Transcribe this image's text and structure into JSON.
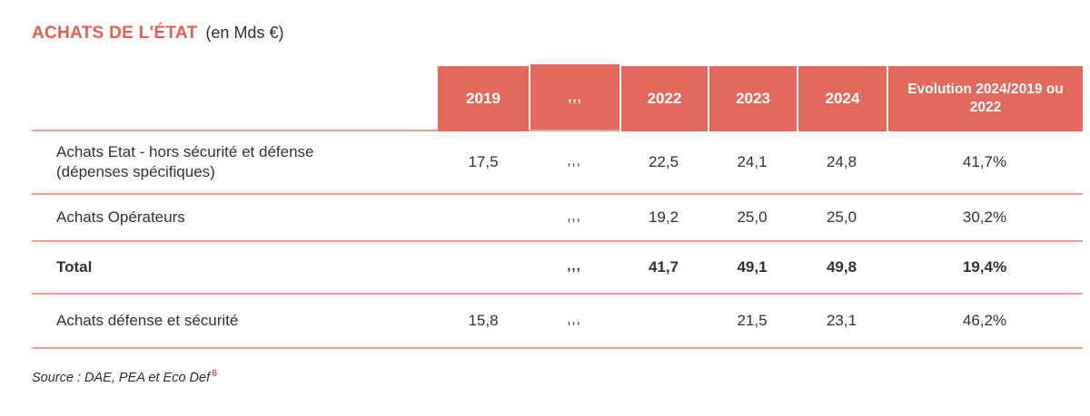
{
  "title": {
    "main": "ACHATS DE L'ÉTAT",
    "unit": "(en Mds €)"
  },
  "table": {
    "columns": [
      "2019",
      ",,,",
      "2022",
      "2023",
      "2024",
      "Evolution 2024/2019 ou 2022"
    ],
    "rows": [
      {
        "label": "Achats Etat - hors sécurité et défense (dépenses spécifiques)",
        "values": [
          "17,5",
          ",,,",
          "22,5",
          "24,1",
          "24,8",
          "41,7%"
        ]
      },
      {
        "label": "Achats Opérateurs",
        "values": [
          "",
          ",,,",
          "19,2",
          "25,0",
          "25,0",
          "30,2%"
        ]
      },
      {
        "label": "Total",
        "values": [
          "",
          ",,,",
          "41,7",
          "49,1",
          "49,8",
          "19,4%"
        ]
      },
      {
        "label": "Achats défense et sécurité",
        "values": [
          "15,8",
          ",,,",
          "",
          "21,5",
          "23,1",
          "46,2%"
        ]
      }
    ]
  },
  "source": {
    "text": "Source : DAE, PEA et Eco Def",
    "footnote": "6"
  },
  "colors": {
    "accent": "#e2695b",
    "title": "#eb5c50",
    "separator": "#f19a90",
    "text": "#31313a"
  }
}
